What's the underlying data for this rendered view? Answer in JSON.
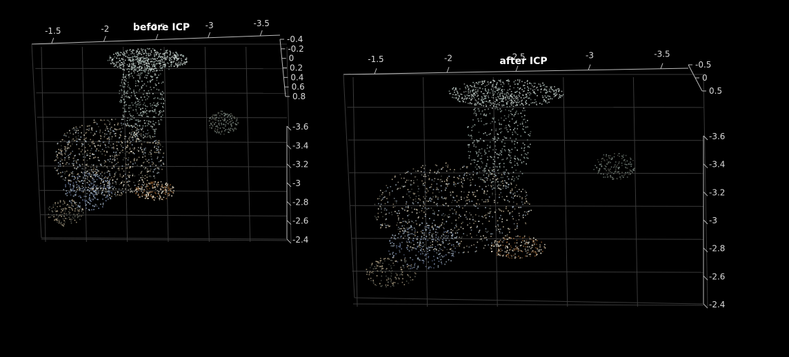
{
  "chart_data": [
    {
      "type": "scatter",
      "title": "before ICP",
      "x_ticks": [
        "-1.5",
        "-2",
        "-2.5",
        "-3",
        "-3.5"
      ],
      "y_ticks": [
        "-0.4",
        "-0.2",
        "0",
        "0.2",
        "0.4",
        "0.6",
        "0.8"
      ],
      "z_ticks": [
        "-3.6",
        "-3.4",
        "-3.2",
        "-3",
        "-2.8",
        "-2.6",
        "-2.4"
      ],
      "grid": true,
      "colors": {
        "background": "#000000",
        "grid": "#3a3a3a",
        "axis": "#bdbdbd",
        "text": "#d9d9d9"
      }
    },
    {
      "type": "scatter",
      "title": "after ICP",
      "x_ticks": [
        "-1.5",
        "-2",
        "-2.5",
        "-3",
        "-3.5"
      ],
      "y_ticks": [
        "-0.5",
        "0",
        "0.5"
      ],
      "z_ticks": [
        "-3.6",
        "-3.4",
        "-3.2",
        "-3",
        "-2.8",
        "-2.6",
        "-2.4"
      ],
      "grid": true,
      "colors": {
        "background": "#000000",
        "grid": "#3a3a3a",
        "axis": "#bdbdbd",
        "text": "#d9d9d9"
      }
    }
  ]
}
